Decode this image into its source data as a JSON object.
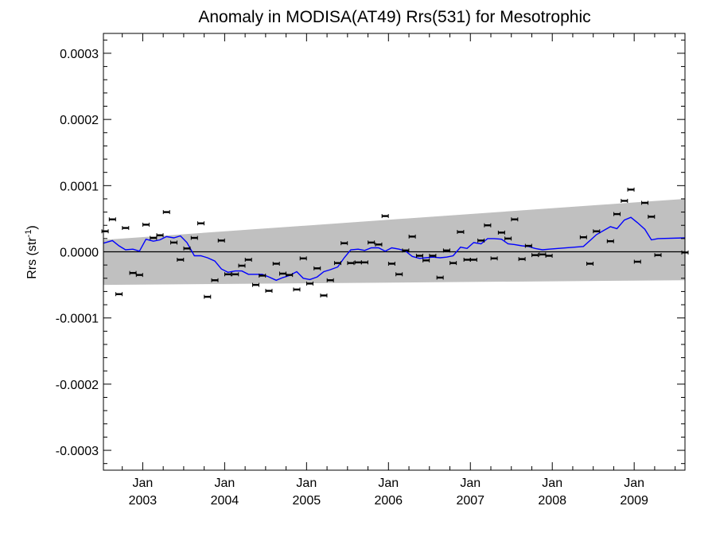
{
  "chart_data": {
    "type": "line",
    "title": "Anomaly in MODISA(AT49) Rrs(531) for Mesotrophic",
    "ylabel": "Rrs (str",
    "ylabel_sup": "-1",
    "ylabel_close": ")",
    "xlim": [
      2002.52,
      2009.62
    ],
    "ylim": [
      -0.00033,
      0.00033
    ],
    "yticks": [
      {
        "value": 0.0003,
        "label": "0.0003"
      },
      {
        "value": 0.0002,
        "label": "0.0002"
      },
      {
        "value": 0.0001,
        "label": "0.0001"
      },
      {
        "value": 0.0,
        "label": "0.0000"
      },
      {
        "value": -0.0001,
        "label": "-0.0001"
      },
      {
        "value": -0.0002,
        "label": "-0.0002"
      },
      {
        "value": -0.0003,
        "label": "-0.0003"
      }
    ],
    "xticks": [
      {
        "value": 2003.0,
        "month": "Jan",
        "year": "2003"
      },
      {
        "value": 2004.0,
        "month": "Jan",
        "year": "2004"
      },
      {
        "value": 2005.0,
        "month": "Jan",
        "year": "2005"
      },
      {
        "value": 2006.0,
        "month": "Jan",
        "year": "2006"
      },
      {
        "value": 2007.0,
        "month": "Jan",
        "year": "2007"
      },
      {
        "value": 2008.0,
        "month": "Jan",
        "year": "2008"
      },
      {
        "value": 2009.0,
        "month": "Jan",
        "year": "2009"
      }
    ],
    "grid": false,
    "zero_line": true,
    "colors": {
      "smoothed": "#0000ff",
      "band": "#c0c0c0",
      "points": "#000000",
      "zero": "#000000"
    },
    "uncertainty_band": {
      "x": [
        2002.52,
        2009.62
      ],
      "lower": [
        -5e-05,
        -4.3e-05
      ],
      "upper": [
        1.8e-05,
        8e-05
      ]
    },
    "monthly_points": {
      "x": [
        2002.54,
        2002.63,
        2002.71,
        2002.79,
        2002.88,
        2002.96,
        2003.04,
        2003.13,
        2003.21,
        2003.29,
        2003.38,
        2003.46,
        2003.54,
        2003.63,
        2003.71,
        2003.79,
        2003.88,
        2003.96,
        2004.04,
        2004.13,
        2004.21,
        2004.29,
        2004.38,
        2004.46,
        2004.54,
        2004.63,
        2004.71,
        2004.79,
        2004.88,
        2004.96,
        2005.04,
        2005.13,
        2005.21,
        2005.29,
        2005.38,
        2005.46,
        2005.54,
        2005.63,
        2005.71,
        2005.79,
        2005.88,
        2005.96,
        2006.04,
        2006.13,
        2006.21,
        2006.29,
        2006.38,
        2006.46,
        2006.54,
        2006.63,
        2006.71,
        2006.79,
        2006.88,
        2006.96,
        2007.04,
        2007.13,
        2007.21,
        2007.29,
        2007.38,
        2007.46,
        2007.54,
        2007.63,
        2007.71,
        2007.79,
        2007.88,
        2007.96,
        2008.38,
        2008.46,
        2008.54,
        2008.71,
        2008.79,
        2008.88,
        2008.96,
        2009.04,
        2009.13,
        2009.21,
        2009.29,
        2009.62
      ],
      "y": [
        3.1e-05,
        4.9e-05,
        -6.4e-05,
        3.6e-05,
        -3.2e-05,
        -3.5e-05,
        4.1e-05,
        2.1e-05,
        2.5e-05,
        6e-05,
        1.4e-05,
        -1.2e-05,
        5e-06,
        2.1e-05,
        4.3e-05,
        -6.8e-05,
        -4.3e-05,
        1.7e-05,
        -3.4e-05,
        -3.4e-05,
        -2.1e-05,
        -1.2e-05,
        -5e-05,
        -3.6e-05,
        -5.9e-05,
        -1.8e-05,
        -3.3e-05,
        -3.5e-05,
        -5.7e-05,
        -1e-05,
        -4.8e-05,
        -2.5e-05,
        -6.6e-05,
        -4.3e-05,
        -1.7e-05,
        1.3e-05,
        -1.7e-05,
        -1.6e-05,
        -1.6e-05,
        1.4e-05,
        1.1e-05,
        5.4e-05,
        -1.8e-05,
        -3.4e-05,
        2e-06,
        2.3e-05,
        -6e-06,
        -1.3e-05,
        -6e-06,
        -3.9e-05,
        2e-06,
        -1.7e-05,
        3e-05,
        -1.2e-05,
        -1.2e-05,
        1.7e-05,
        4e-05,
        -1e-05,
        2.9e-05,
        2e-05,
        4.9e-05,
        -1.1e-05,
        9e-06,
        -5e-06,
        -4e-06,
        -6e-06,
        2.2e-05,
        -1.8e-05,
        3.1e-05,
        1.6e-05,
        5.7e-05,
        7.7e-05,
        9.4e-05,
        -1.5e-05,
        7.4e-05,
        5.3e-05,
        -5e-06,
        -1e-06
      ]
    },
    "series": [
      {
        "x": [
          2002.52,
          2002.63,
          2002.71,
          2002.79,
          2002.88,
          2002.96,
          2003.04,
          2003.13,
          2003.21,
          2003.29,
          2003.38,
          2003.46,
          2003.54,
          2003.63,
          2003.71,
          2003.79,
          2003.88,
          2003.96,
          2004.04,
          2004.13,
          2004.21,
          2004.29,
          2004.38,
          2004.46,
          2004.54,
          2004.63,
          2004.71,
          2004.79,
          2004.88,
          2004.96,
          2005.04,
          2005.13,
          2005.21,
          2005.29,
          2005.38,
          2005.46,
          2005.54,
          2005.63,
          2005.71,
          2005.79,
          2005.88,
          2005.96,
          2006.04,
          2006.13,
          2006.21,
          2006.29,
          2006.38,
          2006.46,
          2006.54,
          2006.63,
          2006.71,
          2006.79,
          2006.88,
          2006.96,
          2007.04,
          2007.13,
          2007.21,
          2007.29,
          2007.38,
          2007.46,
          2007.54,
          2007.63,
          2007.71,
          2007.79,
          2007.88,
          2007.96,
          2008.38,
          2008.46,
          2008.54,
          2008.71,
          2008.79,
          2008.88,
          2008.96,
          2009.04,
          2009.13,
          2009.21,
          2009.29,
          2009.62
        ],
        "y": [
          1.3e-05,
          1.7e-05,
          9e-06,
          3e-06,
          4e-06,
          1e-06,
          1.9e-05,
          1.6e-05,
          1.8e-05,
          2.3e-05,
          2.1e-05,
          2.4e-05,
          1.4e-05,
          -6e-06,
          -6e-06,
          -9e-06,
          -1.4e-05,
          -2.6e-05,
          -3.1e-05,
          -2.9e-05,
          -2.9e-05,
          -3.4e-05,
          -3.4e-05,
          -3.4e-05,
          -3.8e-05,
          -4.3e-05,
          -3.9e-05,
          -3.6e-05,
          -3e-05,
          -4e-05,
          -4.2e-05,
          -3.8e-05,
          -3e-05,
          -2.7e-05,
          -2.3e-05,
          -9e-06,
          3e-06,
          4e-06,
          2e-06,
          6e-06,
          6e-06,
          1e-06,
          6e-06,
          4e-06,
          1e-06,
          -7e-06,
          -1e-05,
          -9e-06,
          -8e-06,
          -9e-06,
          -8e-06,
          -6e-06,
          7e-06,
          5e-06,
          1.4e-05,
          1.2e-05,
          2e-05,
          2e-05,
          1.9e-05,
          1.2e-05,
          1.1e-05,
          9e-06,
          8e-06,
          5e-06,
          3e-06,
          4e-06,
          8e-06,
          1.7e-05,
          2.6e-05,
          3.8e-05,
          3.5e-05,
          4.8e-05,
          5.2e-05,
          4.4e-05,
          3.4e-05,
          1.8e-05,
          2e-05,
          2.1e-05
        ]
      }
    ]
  }
}
